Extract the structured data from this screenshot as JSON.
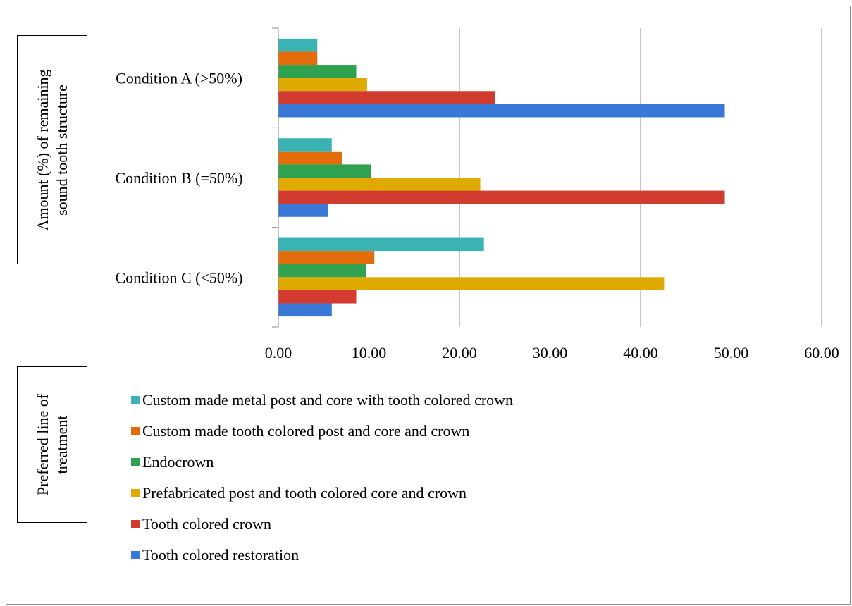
{
  "y_axis_box": {
    "line1": "Amount (%) of remaining",
    "line2": "sound  tooth structure"
  },
  "legend_box": {
    "line1": "Preferred line of",
    "line2": "treatment"
  },
  "chart_data": {
    "type": "bar",
    "orientation": "horizontal",
    "categories": [
      "Condition A (>50%)",
      "Condition B  (=50%)",
      "Condition C (<50%)"
    ],
    "xlim": [
      0,
      60
    ],
    "x_ticks": [
      "0.00",
      "10.00",
      "20.00",
      "30.00",
      "40.00",
      "50.00",
      "60.00"
    ],
    "grid": true,
    "legend_position": "bottom",
    "series": [
      {
        "name": "Custom made metal post and core with tooth colored crown",
        "color": "#3bb3b5",
        "values": [
          4.3,
          5.9,
          22.7
        ]
      },
      {
        "name": "Custom made tooth colored post and core and crown",
        "color": "#e36c0a",
        "values": [
          4.3,
          7.0,
          10.6
        ]
      },
      {
        "name": "Endocrown",
        "color": "#30a14e",
        "values": [
          8.6,
          10.2,
          9.7
        ]
      },
      {
        "name": "Prefabricated post and tooth colored core and crown",
        "color": "#dea900",
        "values": [
          9.8,
          22.3,
          42.6
        ]
      },
      {
        "name": "Tooth colored crown",
        "color": "#d13b30",
        "values": [
          23.9,
          49.3,
          8.6
        ]
      },
      {
        "name": "Tooth colored restoration",
        "color": "#3a78d8",
        "values": [
          49.3,
          5.5,
          5.9
        ]
      }
    ]
  }
}
